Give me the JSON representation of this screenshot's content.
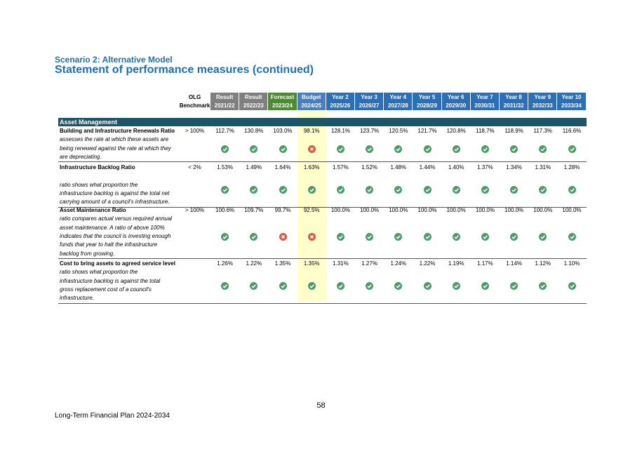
{
  "header": {
    "subtitle": "Scenario 2: Alternative Model",
    "title": "Statement of performance measures (continued)"
  },
  "table": {
    "olg": [
      "OLG",
      "Benchmark"
    ],
    "columns": [
      {
        "label": "Result",
        "period": "2021/22"
      },
      {
        "label": "Result",
        "period": "2022/23"
      },
      {
        "label": "Forecast",
        "period": "2023/24"
      },
      {
        "label": "Budget",
        "period": "2024/25"
      },
      {
        "label": "Year 2",
        "period": "2025/26"
      },
      {
        "label": "Year 3",
        "period": "2026/27"
      },
      {
        "label": "Year 4",
        "period": "2027/28"
      },
      {
        "label": "Year 5",
        "period": "2028/29"
      },
      {
        "label": "Year 6",
        "period": "2029/30"
      },
      {
        "label": "Year 7",
        "period": "2030/31"
      },
      {
        "label": "Year 8",
        "period": "2031/32"
      },
      {
        "label": "Year 9",
        "period": "2032/33"
      },
      {
        "label": "Year 10",
        "period": "2033/34"
      }
    ],
    "section": "Asset Management",
    "measures": [
      {
        "name": "Building and Infrastructure Renewals Ratio",
        "benchmark": "> 100%",
        "values": [
          "112.7%",
          "130.8%",
          "103.0%",
          "98.1%",
          "128.1%",
          "123.7%",
          "120.5%",
          "121.7%",
          "120.8%",
          "118.7%",
          "118.9%",
          "117.3%",
          "116.6%"
        ],
        "description": [
          "assesses the rate at which these assets are",
          "being renewed against the rate at which they",
          "are depreciating."
        ]
      },
      {
        "name": "Infrastructure Backlog Ratio",
        "benchmark": "< 2%",
        "values": [
          "1.53%",
          "1.49%",
          "1.64%",
          "1.63%",
          "1.57%",
          "1.52%",
          "1.48%",
          "1.44%",
          "1.40%",
          "1.37%",
          "1.34%",
          "1.31%",
          "1.28%"
        ],
        "description": [
          "ratio shows what proportion the",
          "infrastructure backlog is against the total net",
          "carrying amount of a council's infrastructure."
        ]
      },
      {
        "name": "Asset Maintenance Ratio",
        "benchmark": "> 100%",
        "values": [
          "100.6%",
          "109.7%",
          "99.7%",
          "92.5%",
          "100.0%",
          "100.0%",
          "100.0%",
          "100.0%",
          "100.0%",
          "100.0%",
          "100.0%",
          "100.0%",
          "100.0%"
        ],
        "description": [
          "ratio compares actual versus required annual",
          "asset maintenance. A ratio of above 100%",
          "indicates that the council is investing enough",
          "funds that year to halt the infrastructure",
          "backlog from growing."
        ]
      },
      {
        "name": "Cost to bring assets to agreed service level",
        "values": [
          "1.26%",
          "1.22%",
          "1.35%",
          "1.35%",
          "1.31%",
          "1.27%",
          "1.24%",
          "1.22%",
          "1.19%",
          "1.17%",
          "1.14%",
          "1.12%",
          "1.10%"
        ],
        "description": [
          "ratio shows what proportion the",
          "infrastructure backlog is against the total",
          "gross replacement cost of a council's",
          "infrastructure."
        ]
      }
    ]
  },
  "footer": {
    "page": "58",
    "document": "Long-Term Financial Plan 2024-2034"
  }
}
